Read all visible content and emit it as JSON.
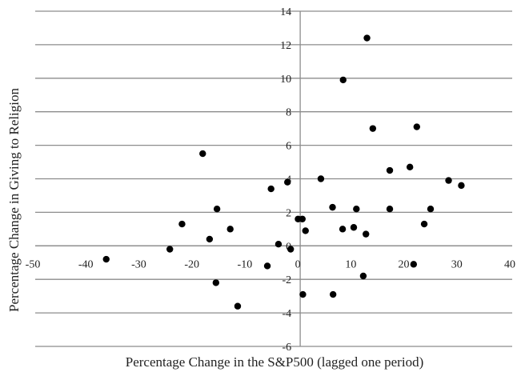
{
  "chart_data": {
    "type": "scatter",
    "title": "",
    "xlabel": "Percentage Change in the S&P500 (lagged one period)",
    "ylabel": "Percentage Change in Giving to Religion",
    "xlim": [
      -50,
      40
    ],
    "ylim": [
      -6,
      14
    ],
    "x_ticks": [
      "-50",
      "-40",
      "-30",
      "-20",
      "-10",
      "0",
      "10",
      "20",
      "30",
      "40"
    ],
    "y_ticks": [
      "-6",
      "-4",
      "-2",
      "0",
      "2",
      "4",
      "6",
      "8",
      "10",
      "12",
      "14"
    ],
    "grid": "horizontal",
    "legend": "none",
    "colors": {
      "point": "#000000",
      "grid": "#8c8c8c",
      "axis": "#8c8c8c",
      "text": "#222222"
    },
    "points": [
      {
        "x": -36.6,
        "y": -0.8
      },
      {
        "x": -24.6,
        "y": -0.2
      },
      {
        "x": -22.3,
        "y": 1.3
      },
      {
        "x": -18.4,
        "y": 5.5
      },
      {
        "x": -17.1,
        "y": 0.4
      },
      {
        "x": -15.7,
        "y": 2.2
      },
      {
        "x": -15.9,
        "y": -2.2
      },
      {
        "x": -13.2,
        "y": 1.0
      },
      {
        "x": -11.8,
        "y": -3.6
      },
      {
        "x": -5.5,
        "y": 3.4
      },
      {
        "x": -6.2,
        "y": -1.2
      },
      {
        "x": -2.4,
        "y": 3.8
      },
      {
        "x": -4.1,
        "y": 0.1
      },
      {
        "x": -1.8,
        "y": -0.2
      },
      {
        "x": -0.4,
        "y": 1.6
      },
      {
        "x": 0.4,
        "y": 1.6
      },
      {
        "x": 1.0,
        "y": 0.9
      },
      {
        "x": 0.5,
        "y": -2.9
      },
      {
        "x": 3.9,
        "y": 4.0
      },
      {
        "x": 6.1,
        "y": 2.3
      },
      {
        "x": 6.2,
        "y": -2.9
      },
      {
        "x": 8.1,
        "y": 9.9
      },
      {
        "x": 8.0,
        "y": 1.0
      },
      {
        "x": 10.1,
        "y": 1.1
      },
      {
        "x": 10.6,
        "y": 2.2
      },
      {
        "x": 11.9,
        "y": -1.8
      },
      {
        "x": 12.4,
        "y": 0.7
      },
      {
        "x": 12.6,
        "y": 12.4
      },
      {
        "x": 13.7,
        "y": 7.0
      },
      {
        "x": 16.9,
        "y": 4.5
      },
      {
        "x": 16.9,
        "y": 2.2
      },
      {
        "x": 20.7,
        "y": 4.7
      },
      {
        "x": 21.4,
        "y": -1.1
      },
      {
        "x": 22.0,
        "y": 7.1
      },
      {
        "x": 23.4,
        "y": 1.3
      },
      {
        "x": 24.6,
        "y": 2.2
      },
      {
        "x": 28.0,
        "y": 3.9
      },
      {
        "x": 30.4,
        "y": 3.6
      }
    ]
  }
}
